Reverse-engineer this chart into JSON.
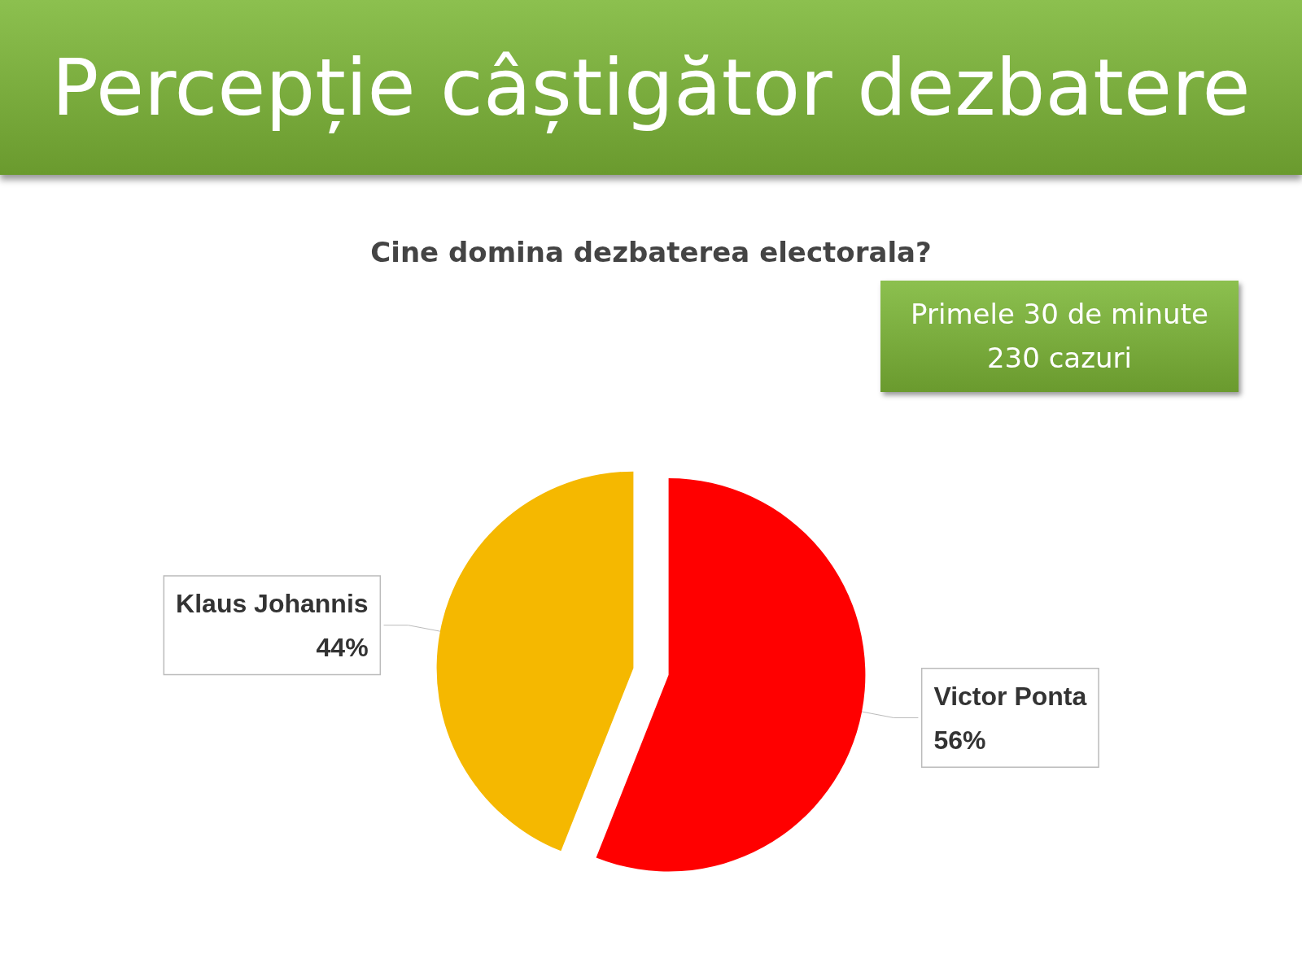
{
  "chart_data": {
    "type": "pie",
    "title": "Percepție câștigător dezbatere",
    "subtitle": "Cine domina dezbaterea electorala?",
    "annotations": [
      "Primele 30 de minute\n230 cazuri"
    ],
    "categories": [
      "Klaus Johannis",
      "Victor Ponta"
    ],
    "values": [
      44,
      56
    ],
    "value_labels": [
      "44%",
      "56%"
    ],
    "colors": [
      "#f5b800",
      "#ff0000"
    ],
    "legend": false
  }
}
